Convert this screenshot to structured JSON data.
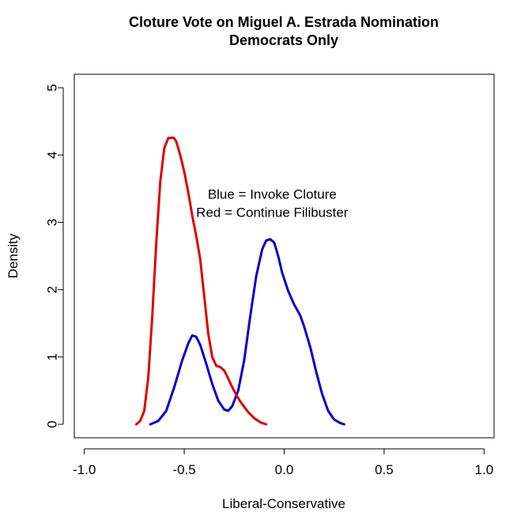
{
  "chart_data": {
    "type": "line",
    "title": "Cloture Vote on Miguel A. Estrada Nomination",
    "subtitle": "Democrats Only",
    "xlabel": "Liberal-Conservative",
    "ylabel": "Density",
    "xlim": [
      -1.05,
      1.05
    ],
    "ylim": [
      -0.2,
      5.2
    ],
    "xticks": [
      -1.0,
      -0.5,
      0.0,
      0.5,
      1.0
    ],
    "xtick_labels": [
      "-1.0",
      "-0.5",
      "0.0",
      "0.5",
      "1.0"
    ],
    "yticks": [
      0,
      1,
      2,
      3,
      4,
      5
    ],
    "ytick_labels": [
      "0",
      "1",
      "2",
      "3",
      "4",
      "5"
    ],
    "grid": false,
    "annotations": [
      {
        "text": "Blue = Invoke Cloture",
        "x": -0.06,
        "y": 3.35
      },
      {
        "text": "Red = Continue Filibuster",
        "x": -0.06,
        "y": 3.08
      }
    ],
    "series": [
      {
        "color": "#0000cc",
        "x": [
          -0.67,
          -0.63,
          -0.59,
          -0.55,
          -0.51,
          -0.48,
          -0.46,
          -0.44,
          -0.42,
          -0.39,
          -0.36,
          -0.33,
          -0.3,
          -0.28,
          -0.26,
          -0.23,
          -0.2,
          -0.17,
          -0.14,
          -0.11,
          -0.09,
          -0.07,
          -0.05,
          -0.03,
          -0.01,
          0.02,
          0.05,
          0.08,
          0.1,
          0.13,
          0.16,
          0.19,
          0.22,
          0.25,
          0.28,
          0.3
        ],
        "y": [
          0.0,
          0.05,
          0.2,
          0.55,
          0.95,
          1.2,
          1.32,
          1.3,
          1.18,
          0.9,
          0.6,
          0.35,
          0.22,
          0.2,
          0.27,
          0.5,
          0.95,
          1.6,
          2.2,
          2.6,
          2.73,
          2.75,
          2.7,
          2.5,
          2.25,
          1.98,
          1.78,
          1.62,
          1.45,
          1.15,
          0.78,
          0.45,
          0.2,
          0.07,
          0.02,
          0.0
        ]
      },
      {
        "color": "#dd0000",
        "x": [
          -0.74,
          -0.72,
          -0.7,
          -0.68,
          -0.66,
          -0.64,
          -0.62,
          -0.6,
          -0.58,
          -0.56,
          -0.55,
          -0.54,
          -0.52,
          -0.5,
          -0.48,
          -0.46,
          -0.44,
          -0.42,
          -0.4,
          -0.38,
          -0.36,
          -0.34,
          -0.32,
          -0.3,
          -0.28,
          -0.26,
          -0.24,
          -0.22,
          -0.2,
          -0.18,
          -0.15,
          -0.12,
          -0.09
        ],
        "y": [
          0.0,
          0.05,
          0.2,
          0.7,
          1.6,
          2.7,
          3.6,
          4.1,
          4.25,
          4.26,
          4.25,
          4.2,
          4.0,
          3.75,
          3.45,
          3.1,
          2.8,
          2.45,
          1.9,
          1.35,
          1.0,
          0.87,
          0.85,
          0.8,
          0.68,
          0.55,
          0.44,
          0.34,
          0.26,
          0.18,
          0.09,
          0.03,
          0.0
        ]
      }
    ]
  }
}
